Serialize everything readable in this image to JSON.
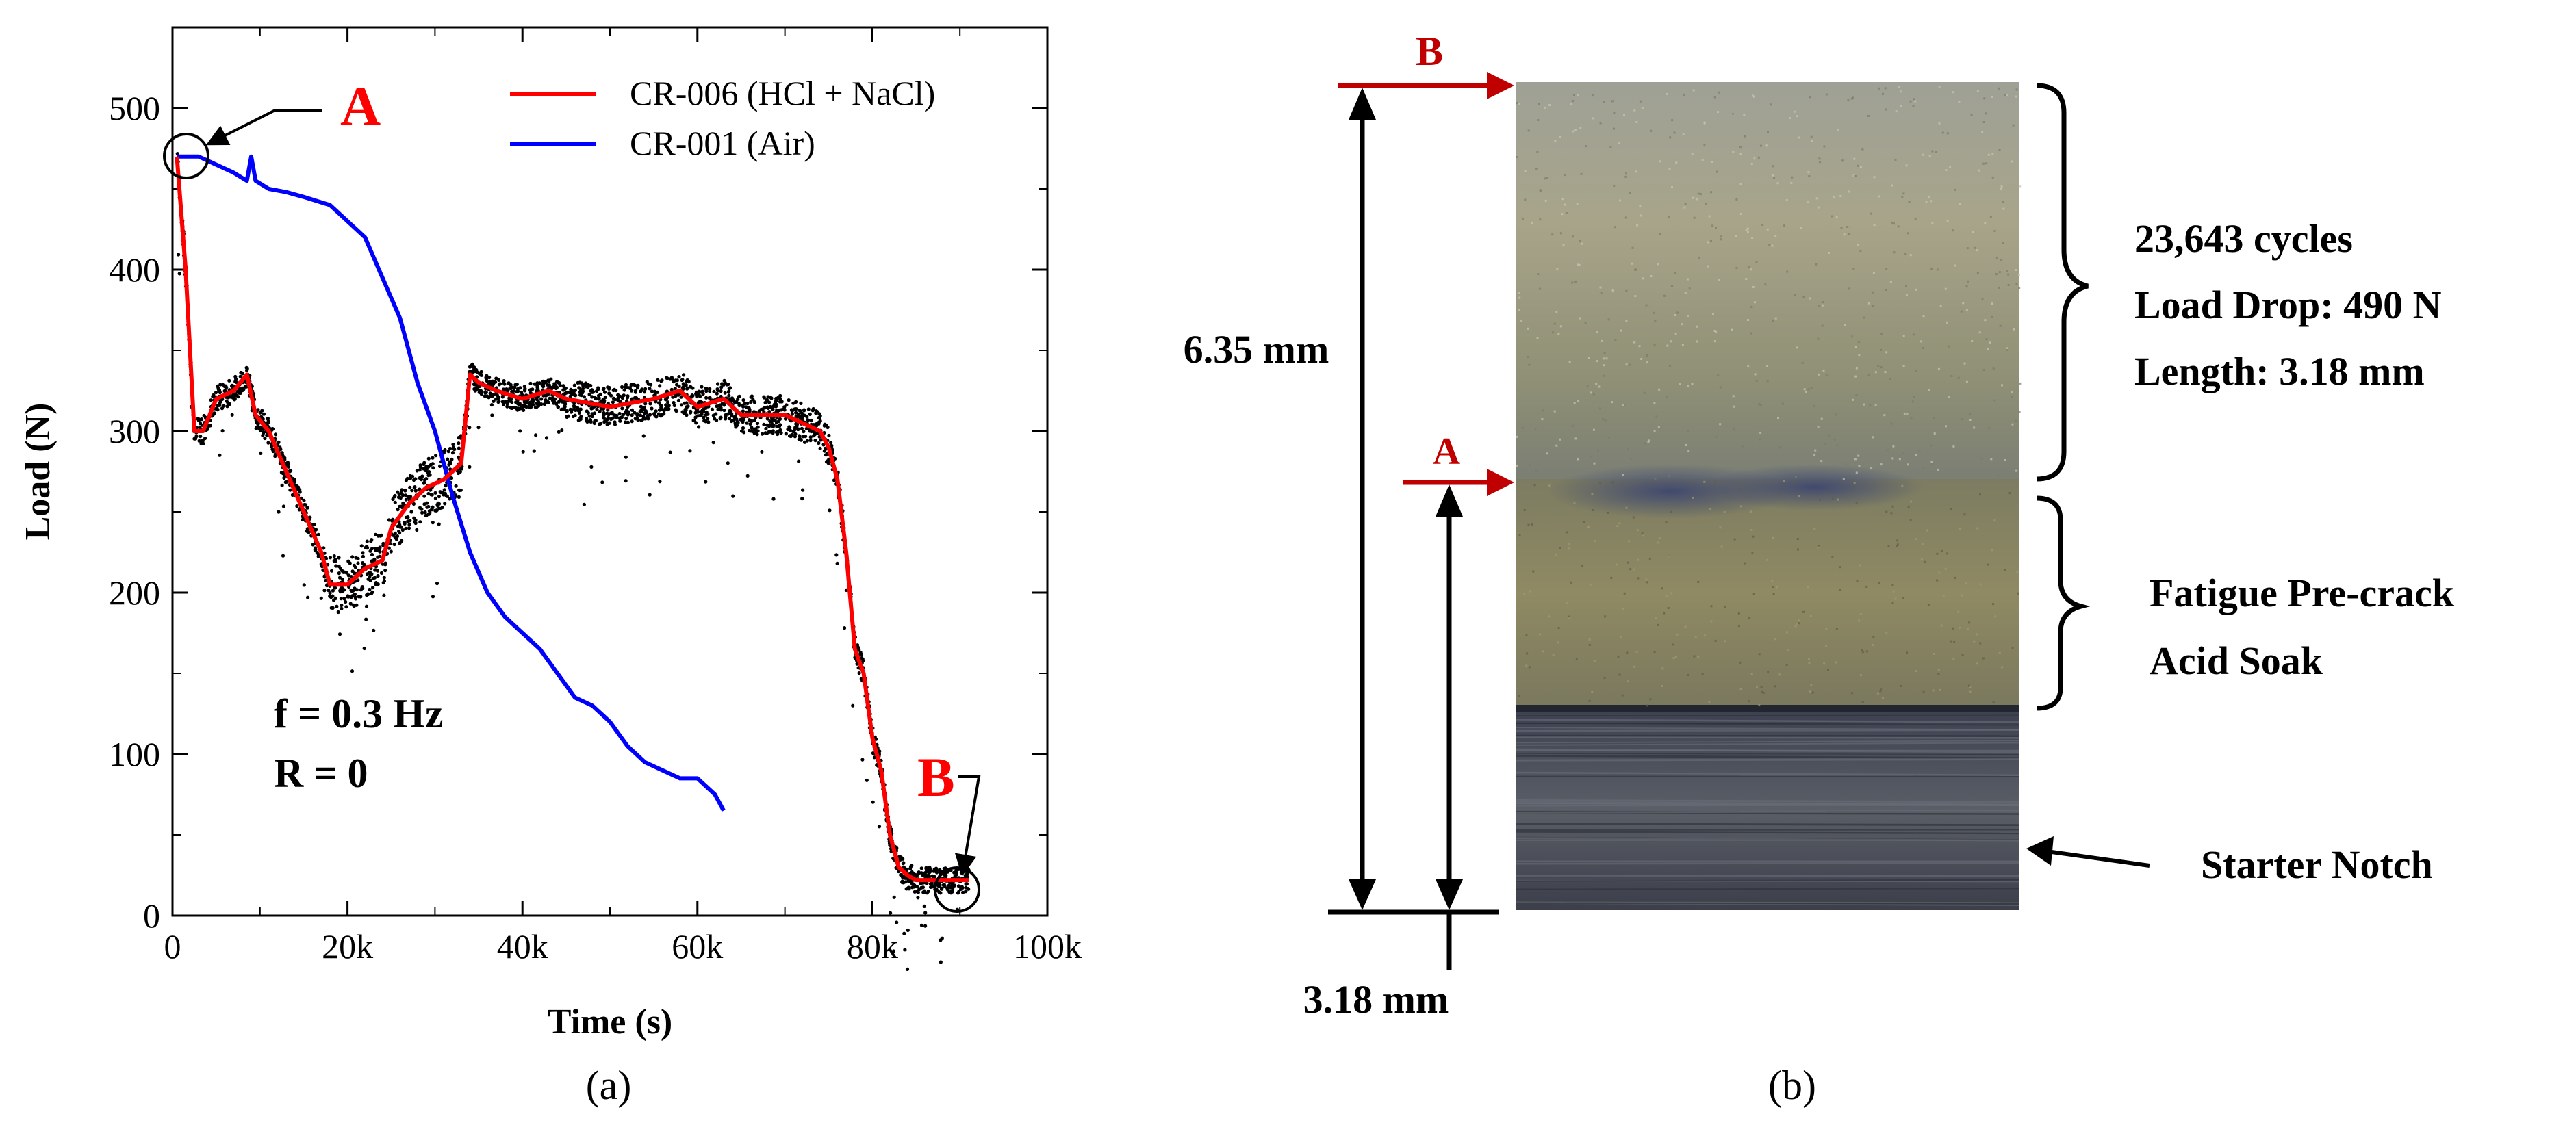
{
  "panel_a": {
    "caption": "(a)",
    "annotations": {
      "marker_a": "A",
      "marker_b": "B",
      "frequency": "f = 0.3 Hz",
      "ratio": "R = 0"
    },
    "colors": {
      "red": "#ff0000",
      "blue": "#0000ff",
      "dots": "#000000"
    }
  },
  "chart_data": {
    "type": "line",
    "xlabel": "Time (s)",
    "ylabel": "Load (N)",
    "xlim": [
      0,
      100000
    ],
    "ylim": [
      0,
      550
    ],
    "xticks": [
      0,
      20000,
      40000,
      60000,
      80000,
      100000
    ],
    "xtick_labels": [
      "0",
      "20k",
      "40k",
      "60k",
      "80k",
      "100k"
    ],
    "yticks": [
      0,
      100,
      200,
      300,
      400,
      500
    ],
    "ytick_labels": [
      "0",
      "100",
      "200",
      "300",
      "400",
      "500"
    ],
    "legend_position": "top-right",
    "series": [
      {
        "name": "CR-006 (HCl + NaCl)",
        "color": "#ff0000",
        "x": [
          500,
          1500,
          2500,
          3500,
          5000,
          7000,
          8500,
          9500,
          11000,
          13000,
          15000,
          17000,
          18000,
          20000,
          22000,
          24000,
          25000,
          27000,
          29000,
          31000,
          32000,
          33000,
          34000,
          35000,
          37000,
          40000,
          43000,
          45000,
          50000,
          55000,
          58000,
          60000,
          63000,
          65000,
          68000,
          70000,
          72000,
          74000,
          75000,
          76000,
          77000,
          78000,
          79000,
          80000,
          81000,
          82000,
          83000,
          84000,
          85000,
          87000,
          90000,
          91000
        ],
        "y": [
          470,
          400,
          300,
          300,
          320,
          325,
          335,
          310,
          300,
          275,
          250,
          225,
          205,
          205,
          215,
          220,
          240,
          255,
          265,
          270,
          275,
          280,
          335,
          330,
          325,
          320,
          325,
          320,
          315,
          320,
          325,
          315,
          320,
          310,
          310,
          310,
          305,
          300,
          290,
          270,
          225,
          165,
          150,
          110,
          90,
          50,
          30,
          25,
          22,
          22,
          22,
          22
        ]
      },
      {
        "name": "CR-001 (Air)",
        "color": "#0000ff",
        "x": [
          500,
          1500,
          3000,
          5000,
          7000,
          8500,
          9000,
          9500,
          11000,
          13000,
          15000,
          18000,
          20000,
          22000,
          24000,
          26000,
          28000,
          30000,
          32000,
          34000,
          36000,
          38000,
          40000,
          42000,
          44000,
          46000,
          48000,
          50000,
          52000,
          54000,
          56000,
          58000,
          60000,
          62000,
          63000
        ],
        "y": [
          470,
          470,
          470,
          465,
          460,
          455,
          470,
          455,
          450,
          448,
          445,
          440,
          430,
          420,
          395,
          370,
          330,
          300,
          260,
          225,
          200,
          185,
          175,
          165,
          150,
          135,
          130,
          120,
          105,
          95,
          90,
          85,
          85,
          75,
          65
        ]
      }
    ],
    "scatter_note": "raw load samples plotted as black dots around CR-006 curve"
  },
  "panel_b": {
    "caption": "(b)",
    "labels": {
      "top_marker": "B",
      "mid_marker": "A",
      "total_length": "6.35 mm",
      "notch_length": "3.18 mm",
      "cycles": "23,643 cycles",
      "load_drop": "Load Drop: 490 N",
      "length": "Length: 3.18 mm",
      "precrack": "Fatigue Pre-crack",
      "acid_soak": "Acid Soak",
      "starter_notch": "Starter Notch"
    },
    "colors": {
      "marker": "#c00000",
      "text": "#000000"
    }
  }
}
